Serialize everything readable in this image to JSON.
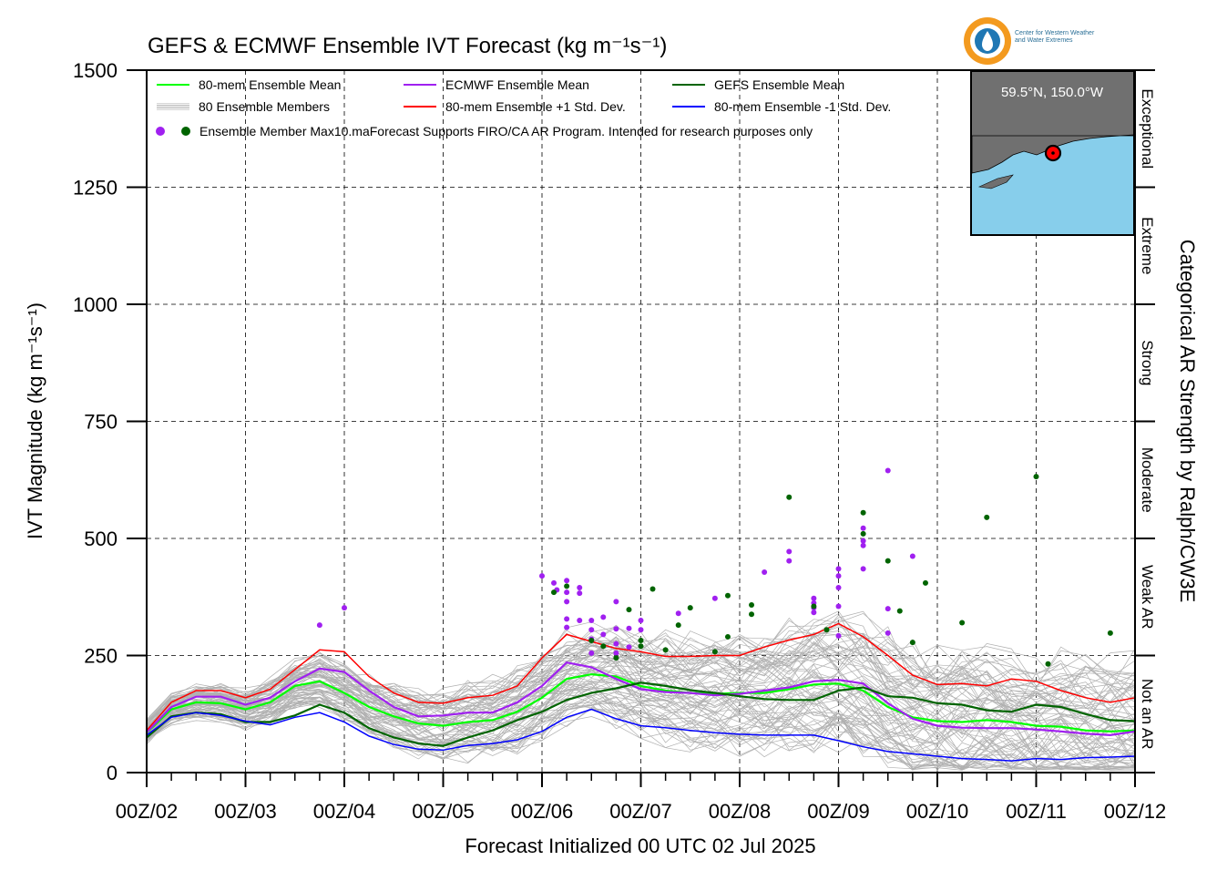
{
  "chart_data": {
    "type": "line",
    "title": "GEFS & ECMWF Ensemble IVT Forecast (kg m⁻¹s⁻¹)",
    "xlabel": "Forecast Initialized 00 UTC 02 Jul 2025",
    "ylabel": "IVT Magnitude (kg m⁻¹s⁻¹)",
    "right_label": "Categorical AR Strength by Ralph/CW3E",
    "xlim": [
      0,
      10
    ],
    "ylim": [
      0,
      1500
    ],
    "x_unit": "days since 00Z/02",
    "x_tick_labels": [
      "00Z/02",
      "00Z/03",
      "00Z/04",
      "00Z/05",
      "00Z/06",
      "00Z/07",
      "00Z/08",
      "00Z/09",
      "00Z/10",
      "00Z/11",
      "00Z/12"
    ],
    "y_ticks": [
      0,
      250,
      500,
      750,
      1000,
      1250,
      1500
    ],
    "grid": true,
    "categories": [
      {
        "label": "Not an AR",
        "from": 0,
        "to": 250
      },
      {
        "label": "Weak AR",
        "from": 250,
        "to": 500
      },
      {
        "label": "Moderate",
        "from": 500,
        "to": 750
      },
      {
        "label": "Strong",
        "from": 750,
        "to": 1000
      },
      {
        "label": "Extreme",
        "from": 1000,
        "to": 1250
      },
      {
        "label": "Exceptional",
        "from": 1250,
        "to": 1500
      }
    ],
    "legend": {
      "placement": "top-left",
      "entries": [
        {
          "label": "80-mem Ensemble Mean",
          "color": "#00ff00",
          "kind": "line"
        },
        {
          "label": "ECMWF Ensemble Mean",
          "color": "#a020f0",
          "kind": "line"
        },
        {
          "label": "GEFS Ensemble Mean",
          "color": "#006400",
          "kind": "line"
        },
        {
          "label": "80 Ensemble Members",
          "color": "#b0b0b0",
          "kind": "multiline"
        },
        {
          "label": "80-mem Ensemble +1 Std. Dev.",
          "color": "#ff0000",
          "kind": "line"
        },
        {
          "label": "80-mem Ensemble -1 Std. Dev.",
          "color": "#0000ff",
          "kind": "line"
        }
      ],
      "max_label": "Ensemble Member Max",
      "note": "10.maForecast Supports FIRO/CA AR Program. Intended for research purposes only"
    },
    "inset": {
      "label": "59.5°N, 150.0°W",
      "land_color": "#707070",
      "sea_color": "#87ceeb"
    },
    "x": [
      0,
      0.25,
      0.5,
      0.75,
      1,
      1.25,
      1.5,
      1.75,
      2,
      2.25,
      2.5,
      2.75,
      3,
      3.25,
      3.5,
      3.75,
      4,
      4.25,
      4.5,
      4.75,
      5,
      5.25,
      5.5,
      5.75,
      6,
      6.25,
      6.5,
      6.75,
      7,
      7.25,
      7.5,
      7.75,
      8,
      8.25,
      8.5,
      8.75,
      9,
      9.25,
      9.5,
      9.75,
      10
    ],
    "series": [
      {
        "name": "80-mem Ensemble Mean",
        "color": "#00ff00",
        "width": 2.2,
        "values": [
          85,
          135,
          150,
          148,
          135,
          150,
          185,
          195,
          170,
          140,
          120,
          105,
          100,
          108,
          112,
          130,
          160,
          200,
          210,
          205,
          185,
          175,
          170,
          168,
          170,
          170,
          178,
          188,
          190,
          175,
          140,
          118,
          110,
          108,
          112,
          108,
          100,
          98,
          90,
          88,
          90
        ]
      },
      {
        "name": "ECMWF Ensemble Mean",
        "color": "#a020f0",
        "width": 2.2,
        "values": [
          86,
          140,
          162,
          162,
          145,
          160,
          195,
          222,
          215,
          175,
          140,
          120,
          122,
          128,
          128,
          150,
          185,
          235,
          225,
          200,
          178,
          172,
          170,
          165,
          168,
          175,
          182,
          195,
          198,
          190,
          148,
          115,
          100,
          96,
          95,
          95,
          92,
          88,
          83,
          80,
          88
        ]
      },
      {
        "name": "GEFS Ensemble Mean",
        "color": "#006400",
        "width": 2.2,
        "values": [
          75,
          120,
          128,
          125,
          108,
          108,
          122,
          145,
          128,
          95,
          75,
          62,
          57,
          75,
          90,
          112,
          130,
          155,
          170,
          180,
          192,
          185,
          176,
          170,
          163,
          157,
          155,
          155,
          175,
          182,
          163,
          160,
          148,
          145,
          133,
          130,
          145,
          140,
          125,
          112,
          110
        ]
      },
      {
        "name": "80-mem Ensemble +1 Std. Dev.",
        "color": "#ff0000",
        "width": 1.5,
        "values": [
          90,
          150,
          175,
          175,
          160,
          178,
          220,
          262,
          258,
          205,
          170,
          150,
          148,
          160,
          165,
          185,
          245,
          295,
          280,
          265,
          258,
          248,
          248,
          250,
          250,
          268,
          283,
          295,
          318,
          290,
          250,
          208,
          188,
          190,
          185,
          200,
          195,
          175,
          160,
          150,
          160
        ]
      },
      {
        "name": "80-mem Ensemble -1 Std. Dev.",
        "color": "#0000ff",
        "width": 1.5,
        "values": [
          80,
          118,
          128,
          122,
          110,
          102,
          118,
          128,
          108,
          78,
          60,
          50,
          48,
          58,
          62,
          70,
          88,
          118,
          135,
          115,
          100,
          96,
          90,
          85,
          82,
          80,
          80,
          80,
          68,
          55,
          45,
          40,
          35,
          30,
          28,
          25,
          30,
          28,
          32,
          33,
          35
        ]
      }
    ],
    "member_max": {
      "ecmwf": [
        [
          1.75,
          315
        ],
        [
          2.0,
          352
        ],
        [
          4.0,
          420
        ],
        [
          4.12,
          405
        ],
        [
          4.15,
          390
        ],
        [
          4.25,
          410
        ],
        [
          4.25,
          385
        ],
        [
          4.25,
          365
        ],
        [
          4.25,
          328
        ],
        [
          4.25,
          310
        ],
        [
          4.38,
          395
        ],
        [
          4.38,
          383
        ],
        [
          4.38,
          325
        ],
        [
          4.5,
          325
        ],
        [
          4.5,
          305
        ],
        [
          4.5,
          285
        ],
        [
          4.5,
          255
        ],
        [
          4.62,
          332
        ],
        [
          4.62,
          295
        ],
        [
          4.75,
          365
        ],
        [
          4.75,
          307
        ],
        [
          4.75,
          275
        ],
        [
          4.75,
          255
        ],
        [
          4.88,
          308
        ],
        [
          4.88,
          268
        ],
        [
          5.0,
          325
        ],
        [
          5.0,
          305
        ],
        [
          5.38,
          340
        ],
        [
          5.75,
          372
        ],
        [
          6.25,
          428
        ],
        [
          6.5,
          472
        ],
        [
          6.5,
          452
        ],
        [
          6.75,
          372
        ],
        [
          6.75,
          362
        ],
        [
          6.75,
          352
        ],
        [
          6.75,
          342
        ],
        [
          7.0,
          435
        ],
        [
          7.0,
          420
        ],
        [
          7.0,
          395
        ],
        [
          7.0,
          355
        ],
        [
          7.0,
          292
        ],
        [
          7.25,
          522
        ],
        [
          7.25,
          495
        ],
        [
          7.25,
          485
        ],
        [
          7.25,
          435
        ],
        [
          7.5,
          645
        ],
        [
          7.5,
          350
        ],
        [
          7.5,
          298
        ],
        [
          7.75,
          462
        ]
      ],
      "gefs": [
        [
          4.12,
          385
        ],
        [
          4.25,
          398
        ],
        [
          4.5,
          282
        ],
        [
          4.62,
          270
        ],
        [
          4.75,
          245
        ],
        [
          4.88,
          348
        ],
        [
          5.0,
          282
        ],
        [
          5.0,
          270
        ],
        [
          5.12,
          392
        ],
        [
          5.25,
          262
        ],
        [
          5.38,
          315
        ],
        [
          5.5,
          352
        ],
        [
          5.75,
          258
        ],
        [
          5.88,
          378
        ],
        [
          5.88,
          290
        ],
        [
          6.12,
          358
        ],
        [
          6.12,
          338
        ],
        [
          6.5,
          588
        ],
        [
          6.75,
          355
        ],
        [
          6.88,
          305
        ],
        [
          7.25,
          555
        ],
        [
          7.25,
          510
        ],
        [
          7.5,
          452
        ],
        [
          7.62,
          345
        ],
        [
          7.75,
          278
        ],
        [
          7.88,
          405
        ],
        [
          8.25,
          320
        ],
        [
          8.5,
          545
        ],
        [
          9.0,
          632
        ],
        [
          9.12,
          232
        ],
        [
          9.75,
          298
        ]
      ]
    }
  }
}
